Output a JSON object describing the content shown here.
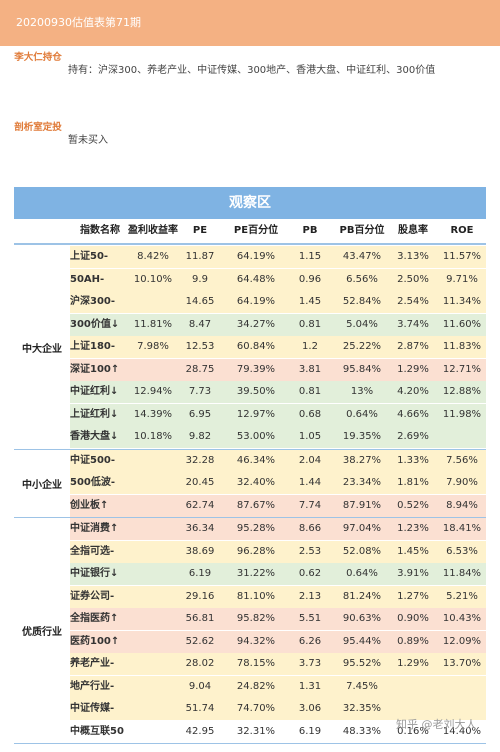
{
  "header": {
    "title": "20200930估值表第71期"
  },
  "holdings": {
    "label": "李大仁持仓",
    "text": "持有：沪深300、养老产业、中证传媒、300地产、香港大盘、中证红利、300价值"
  },
  "plan": {
    "label": "剖析室定投",
    "text": "暂未买入"
  },
  "table": {
    "title": "观察区",
    "columns": [
      "指数名称",
      "盈利收益率",
      "PE",
      "PE百分位",
      "PB",
      "PB百分位",
      "股息率",
      "ROE"
    ],
    "groups": [
      {
        "name": "中大企业",
        "rows": [
          {
            "name": "上证50-",
            "yield": "8.42%",
            "pe": "11.87",
            "pe_pct": "64.19%",
            "pb": "1.15",
            "pb_pct": "43.47%",
            "div": "3.13%",
            "roe": "11.57%",
            "color": "#fef2cc"
          },
          {
            "name": "50AH-",
            "yield": "10.10%",
            "pe": "9.9",
            "pe_pct": "64.48%",
            "pb": "0.96",
            "pb_pct": "6.56%",
            "div": "2.50%",
            "roe": "9.71%",
            "color": "#fef2cc"
          },
          {
            "name": "沪深300-",
            "yield": "",
            "pe": "14.65",
            "pe_pct": "64.19%",
            "pb": "1.45",
            "pb_pct": "52.84%",
            "div": "2.54%",
            "roe": "11.34%",
            "color": "#fef2cc"
          },
          {
            "name": "300价值↓",
            "yield": "11.81%",
            "pe": "8.47",
            "pe_pct": "34.27%",
            "pb": "0.81",
            "pb_pct": "5.04%",
            "div": "3.74%",
            "roe": "11.60%",
            "color": "#e2efda"
          },
          {
            "name": "上证180-",
            "yield": "7.98%",
            "pe": "12.53",
            "pe_pct": "60.84%",
            "pb": "1.2",
            "pb_pct": "25.22%",
            "div": "2.87%",
            "roe": "11.83%",
            "color": "#fef2cc"
          },
          {
            "name": "深证100↑",
            "yield": "",
            "pe": "28.75",
            "pe_pct": "79.39%",
            "pb": "3.81",
            "pb_pct": "95.84%",
            "div": "1.29%",
            "roe": "12.71%",
            "color": "#fbe0d2"
          },
          {
            "name": "中证红利↓",
            "yield": "12.94%",
            "pe": "7.73",
            "pe_pct": "39.50%",
            "pb": "0.81",
            "pb_pct": "13%",
            "div": "4.20%",
            "roe": "12.88%",
            "color": "#e2efda"
          },
          {
            "name": "上证红利↓",
            "yield": "14.39%",
            "pe": "6.95",
            "pe_pct": "12.97%",
            "pb": "0.68",
            "pb_pct": "0.64%",
            "div": "4.66%",
            "roe": "11.98%",
            "color": "#e2efda"
          },
          {
            "name": "香港大盘↓",
            "yield": "10.18%",
            "pe": "9.82",
            "pe_pct": "53.00%",
            "pb": "1.05",
            "pb_pct": "19.35%",
            "div": "2.69%",
            "roe": "",
            "color": "#e2efda"
          }
        ]
      },
      {
        "name": "中小企业",
        "rows": [
          {
            "name": "中证500-",
            "yield": "",
            "pe": "32.28",
            "pe_pct": "46.34%",
            "pb": "2.04",
            "pb_pct": "38.27%",
            "div": "1.33%",
            "roe": "7.56%",
            "color": "#fef2cc"
          },
          {
            "name": "500低波-",
            "yield": "",
            "pe": "20.45",
            "pe_pct": "32.40%",
            "pb": "1.44",
            "pb_pct": "23.34%",
            "div": "1.81%",
            "roe": "7.90%",
            "color": "#fef2cc"
          },
          {
            "name": "创业板↑",
            "yield": "",
            "pe": "62.74",
            "pe_pct": "87.67%",
            "pb": "7.74",
            "pb_pct": "87.91%",
            "div": "0.52%",
            "roe": "8.94%",
            "color": "#fbe0d2"
          }
        ]
      },
      {
        "name": "优质行业",
        "rows": [
          {
            "name": "中证消费↑",
            "yield": "",
            "pe": "36.34",
            "pe_pct": "95.28%",
            "pb": "8.66",
            "pb_pct": "97.04%",
            "div": "1.23%",
            "roe": "18.41%",
            "color": "#fbe0d2"
          },
          {
            "name": "全指可选-",
            "yield": "",
            "pe": "38.69",
            "pe_pct": "96.28%",
            "pb": "2.53",
            "pb_pct": "52.08%",
            "div": "1.45%",
            "roe": "6.53%",
            "color": "#fef2cc"
          },
          {
            "name": "中证银行↓",
            "yield": "",
            "pe": "6.19",
            "pe_pct": "31.22%",
            "pb": "0.62",
            "pb_pct": "0.64%",
            "div": "3.91%",
            "roe": "11.84%",
            "color": "#e2efda"
          },
          {
            "name": "证券公司-",
            "yield": "",
            "pe": "29.16",
            "pe_pct": "81.10%",
            "pb": "2.13",
            "pb_pct": "81.24%",
            "div": "1.27%",
            "roe": "5.21%",
            "color": "#fef2cc"
          },
          {
            "name": "全指医药↑",
            "yield": "",
            "pe": "56.81",
            "pe_pct": "95.82%",
            "pb": "5.51",
            "pb_pct": "90.63%",
            "div": "0.90%",
            "roe": "10.43%",
            "color": "#fbe0d2"
          },
          {
            "name": "医药100↑",
            "yield": "",
            "pe": "52.62",
            "pe_pct": "94.32%",
            "pb": "6.26",
            "pb_pct": "95.44%",
            "div": "0.89%",
            "roe": "12.09%",
            "color": "#fbe0d2"
          },
          {
            "name": "养老产业-",
            "yield": "",
            "pe": "28.02",
            "pe_pct": "78.15%",
            "pb": "3.73",
            "pb_pct": "95.52%",
            "div": "1.29%",
            "roe": "13.70%",
            "color": "#fef2cc"
          },
          {
            "name": "地产行业-",
            "yield": "",
            "pe": "9.04",
            "pe_pct": "24.82%",
            "pb": "1.31",
            "pb_pct": "7.45%",
            "div": "",
            "roe": "",
            "color": "#fef2cc"
          },
          {
            "name": "中证传媒-",
            "yield": "",
            "pe": "51.74",
            "pe_pct": "74.70%",
            "pb": "3.06",
            "pb_pct": "32.35%",
            "div": "",
            "roe": "",
            "color": "#fef2cc"
          },
          {
            "name": "中概互联50",
            "yield": "",
            "pe": "42.95",
            "pe_pct": "32.31%",
            "pb": "6.19",
            "pb_pct": "48.33%",
            "div": "0.16%",
            "roe": "14.40%",
            "color": "#ffffff"
          }
        ]
      }
    ]
  },
  "watermark": {
    "text": "知乎 @老刘大人"
  }
}
